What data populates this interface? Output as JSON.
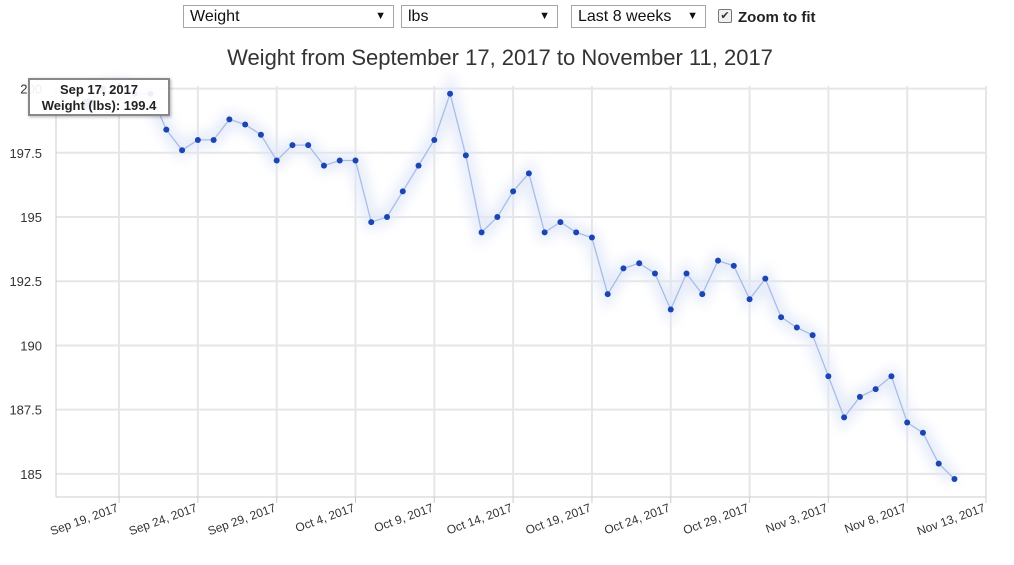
{
  "controls": {
    "metric": "Weight",
    "unit": "lbs",
    "range": "Last 8 weeks",
    "zoom_label": "Zoom to fit",
    "zoom_checked": true,
    "checkmark": "✔",
    "caret": "▼"
  },
  "tooltip": {
    "date": "Sep 17, 2017",
    "value_label": "Weight (lbs): 199.4"
  },
  "colors": {
    "line": "#a7bde6",
    "point": "#1b45b3",
    "highlight_point": "#1e3f8a",
    "grid": "#e6e6e6",
    "axis": "#cccccc",
    "text": "#333333"
  },
  "chart_data": {
    "type": "line",
    "title": "Weight from September 17, 2017 to November 11, 2017",
    "xlabel": "",
    "ylabel": "",
    "ylim": [
      184.1,
      200.1
    ],
    "y_ticks": [
      185,
      187.5,
      190,
      192.5,
      195,
      197.5,
      200
    ],
    "y_tick_labels": [
      "185",
      "187.5",
      "190",
      "192.5",
      "195",
      "197.5",
      "200"
    ],
    "x_range": [
      "2017-09-15",
      "2017-11-13"
    ],
    "x_ticks": [
      "2017-09-19",
      "2017-09-24",
      "2017-09-29",
      "2017-10-04",
      "2017-10-09",
      "2017-10-14",
      "2017-10-19",
      "2017-10-24",
      "2017-10-29",
      "2017-11-03",
      "2017-11-08",
      "2017-11-13"
    ],
    "x_tick_labels": [
      "Sep 19, 2017",
      "Sep 24, 2017",
      "Sep 29, 2017",
      "Oct 4, 2017",
      "Oct 9, 2017",
      "Oct 14, 2017",
      "Oct 19, 2017",
      "Oct 24, 2017",
      "Oct 29, 2017",
      "Nov 3, 2017",
      "Nov 8, 2017",
      "Nov 13, 2017"
    ],
    "highlighted_date": "2017-09-17",
    "series": [
      {
        "points": [
          {
            "x": "2017-09-17",
            "y": 199.4
          },
          {
            "x": "2017-09-18",
            "y": 200.0
          },
          {
            "x": "2017-09-19",
            "y": 200.1
          },
          {
            "x": "2017-09-20",
            "y": 199.8
          },
          {
            "x": "2017-09-21",
            "y": 199.8
          },
          {
            "x": "2017-09-22",
            "y": 198.4
          },
          {
            "x": "2017-09-23",
            "y": 197.6
          },
          {
            "x": "2017-09-24",
            "y": 198.0
          },
          {
            "x": "2017-09-25",
            "y": 198.0
          },
          {
            "x": "2017-09-26",
            "y": 198.8
          },
          {
            "x": "2017-09-27",
            "y": 198.6
          },
          {
            "x": "2017-09-28",
            "y": 198.2
          },
          {
            "x": "2017-09-29",
            "y": 197.2
          },
          {
            "x": "2017-09-30",
            "y": 197.8
          },
          {
            "x": "2017-10-01",
            "y": 197.8
          },
          {
            "x": "2017-10-02",
            "y": 197.0
          },
          {
            "x": "2017-10-03",
            "y": 197.2
          },
          {
            "x": "2017-10-04",
            "y": 197.2
          },
          {
            "x": "2017-10-05",
            "y": 194.8
          },
          {
            "x": "2017-10-06",
            "y": 195.0
          },
          {
            "x": "2017-10-07",
            "y": 196.0
          },
          {
            "x": "2017-10-08",
            "y": 197.0
          },
          {
            "x": "2017-10-09",
            "y": 198.0
          },
          {
            "x": "2017-10-10",
            "y": 199.8
          },
          {
            "x": "2017-10-11",
            "y": 197.4
          },
          {
            "x": "2017-10-12",
            "y": 194.4
          },
          {
            "x": "2017-10-13",
            "y": 195.0
          },
          {
            "x": "2017-10-14",
            "y": 196.0
          },
          {
            "x": "2017-10-15",
            "y": 196.7
          },
          {
            "x": "2017-10-16",
            "y": 194.4
          },
          {
            "x": "2017-10-17",
            "y": 194.8
          },
          {
            "x": "2017-10-18",
            "y": 194.4
          },
          {
            "x": "2017-10-19",
            "y": 194.2
          },
          {
            "x": "2017-10-20",
            "y": 192.0
          },
          {
            "x": "2017-10-21",
            "y": 193.0
          },
          {
            "x": "2017-10-22",
            "y": 193.2
          },
          {
            "x": "2017-10-23",
            "y": 192.8
          },
          {
            "x": "2017-10-24",
            "y": 191.4
          },
          {
            "x": "2017-10-25",
            "y": 192.8
          },
          {
            "x": "2017-10-26",
            "y": 192.0
          },
          {
            "x": "2017-10-27",
            "y": 193.3
          },
          {
            "x": "2017-10-28",
            "y": 193.1
          },
          {
            "x": "2017-10-29",
            "y": 191.8
          },
          {
            "x": "2017-10-30",
            "y": 192.6
          },
          {
            "x": "2017-10-31",
            "y": 191.1
          },
          {
            "x": "2017-11-01",
            "y": 190.7
          },
          {
            "x": "2017-11-02",
            "y": 190.4
          },
          {
            "x": "2017-11-03",
            "y": 188.8
          },
          {
            "x": "2017-11-04",
            "y": 187.2
          },
          {
            "x": "2017-11-05",
            "y": 188.0
          },
          {
            "x": "2017-11-06",
            "y": 188.3
          },
          {
            "x": "2017-11-07",
            "y": 188.8
          },
          {
            "x": "2017-11-08",
            "y": 187.0
          },
          {
            "x": "2017-11-09",
            "y": 186.6
          },
          {
            "x": "2017-11-10",
            "y": 185.4
          },
          {
            "x": "2017-11-11",
            "y": 184.8
          }
        ]
      }
    ]
  }
}
